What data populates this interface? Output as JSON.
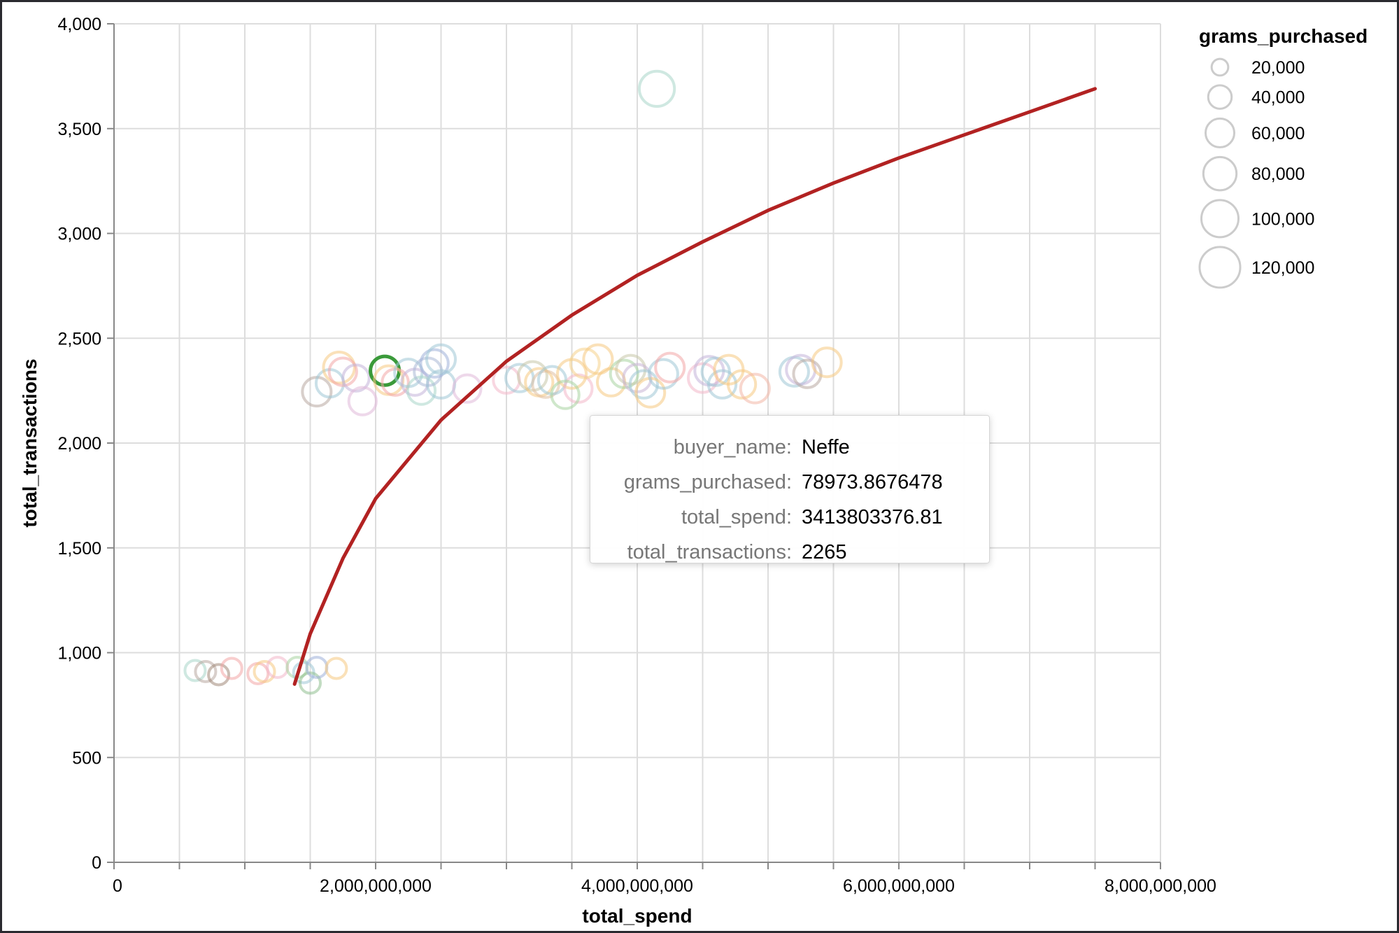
{
  "chart_data": {
    "type": "scatter",
    "xlabel": "total_spend",
    "ylabel": "total_transactions",
    "xlim": [
      0,
      8000000000
    ],
    "ylim": [
      0,
      4000
    ],
    "x_ticks": [
      "0",
      "2,000,000,000",
      "4,000,000,000",
      "6,000,000,000",
      "8,000,000,000"
    ],
    "y_ticks": [
      "0",
      "500",
      "1,000",
      "1,500",
      "2,000",
      "2,500",
      "3,000",
      "3,500",
      "4,000"
    ],
    "grid": true,
    "size_legend": {
      "title": "grams_purchased",
      "entries": [
        {
          "label": "20,000",
          "value": 20000
        },
        {
          "label": "40,000",
          "value": 40000
        },
        {
          "label": "60,000",
          "value": 60000
        },
        {
          "label": "80,000",
          "value": 80000
        },
        {
          "label": "100,000",
          "value": 100000
        },
        {
          "label": "120,000",
          "value": 120000
        }
      ],
      "placement": "right"
    },
    "trend_line": {
      "color": "#b22222",
      "x": [
        1380000000,
        1500000000,
        1750000000,
        2000000000,
        2500000000,
        3000000000,
        3500000000,
        4000000000,
        4500000000,
        5000000000,
        5500000000,
        6000000000,
        6500000000,
        7000000000,
        7500000000
      ],
      "y": [
        850,
        1090,
        1450,
        1735,
        2110,
        2390,
        2610,
        2800,
        2960,
        3110,
        3240,
        3360,
        3470,
        3580,
        3690
      ]
    },
    "points": [
      {
        "x": 4150000000,
        "y": 3690,
        "size": 90000,
        "color": "#a8d6c8"
      },
      {
        "x": 1550000000,
        "y": 2245,
        "size": 60000,
        "color": "#b8a8a0"
      },
      {
        "x": 1650000000,
        "y": 2285,
        "size": 55000,
        "color": "#9fc7d6"
      },
      {
        "x": 1720000000,
        "y": 2360,
        "size": 70000,
        "color": "#f6c97f"
      },
      {
        "x": 1750000000,
        "y": 2340,
        "size": 55000,
        "color": "#f2a6a6"
      },
      {
        "x": 1850000000,
        "y": 2310,
        "size": 50000,
        "color": "#c2b2d8"
      },
      {
        "x": 1900000000,
        "y": 2200,
        "size": 55000,
        "color": "#e0b8d8"
      },
      {
        "x": 2070000000,
        "y": 2345,
        "size": 60000,
        "color": "#3a9a3a",
        "highlight": true
      },
      {
        "x": 2100000000,
        "y": 2300,
        "size": 60000,
        "color": "#f6c97f"
      },
      {
        "x": 2150000000,
        "y": 2290,
        "size": 50000,
        "color": "#f2a6a6"
      },
      {
        "x": 2250000000,
        "y": 2335,
        "size": 55000,
        "color": "#9fc7d6"
      },
      {
        "x": 2300000000,
        "y": 2290,
        "size": 50000,
        "color": "#c2b2d8"
      },
      {
        "x": 2350000000,
        "y": 2250,
        "size": 55000,
        "color": "#a8d6c8"
      },
      {
        "x": 2400000000,
        "y": 2340,
        "size": 55000,
        "color": "#aab8d6"
      },
      {
        "x": 2450000000,
        "y": 2380,
        "size": 55000,
        "color": "#9fb0d8"
      },
      {
        "x": 2500000000,
        "y": 2400,
        "size": 60000,
        "color": "#9fc7d6"
      },
      {
        "x": 2500000000,
        "y": 2280,
        "size": 55000,
        "color": "#9fc7d6"
      },
      {
        "x": 2700000000,
        "y": 2260,
        "size": 55000,
        "color": "#e0b8d8"
      },
      {
        "x": 3000000000,
        "y": 2300,
        "size": 50000,
        "color": "#f2b6c8"
      },
      {
        "x": 3100000000,
        "y": 2310,
        "size": 55000,
        "color": "#9fc7d6"
      },
      {
        "x": 3200000000,
        "y": 2320,
        "size": 60000,
        "color": "#c6c6a8"
      },
      {
        "x": 3250000000,
        "y": 2290,
        "size": 55000,
        "color": "#f6c97f"
      },
      {
        "x": 3300000000,
        "y": 2280,
        "size": 50000,
        "color": "#e0c0a0"
      },
      {
        "x": 3350000000,
        "y": 2300,
        "size": 55000,
        "color": "#9fc7d6"
      },
      {
        "x": 3500000000,
        "y": 2330,
        "size": 60000,
        "color": "#f6c97f"
      },
      {
        "x": 3550000000,
        "y": 2260,
        "size": 55000,
        "color": "#f2b6c8"
      },
      {
        "x": 3450000000,
        "y": 2230,
        "size": 55000,
        "color": "#a8d4a0"
      },
      {
        "x": 3600000000,
        "y": 2380,
        "size": 60000,
        "color": "#f6d28a"
      },
      {
        "x": 3700000000,
        "y": 2400,
        "size": 60000,
        "color": "#f6c97f"
      },
      {
        "x": 3800000000,
        "y": 2290,
        "size": 55000,
        "color": "#f6c97f"
      },
      {
        "x": 3900000000,
        "y": 2330,
        "size": 55000,
        "color": "#a8d4a0"
      },
      {
        "x": 3950000000,
        "y": 2350,
        "size": 60000,
        "color": "#c6c6a8"
      },
      {
        "x": 4000000000,
        "y": 2310,
        "size": 55000,
        "color": "#c8b4d6"
      },
      {
        "x": 4050000000,
        "y": 2280,
        "size": 55000,
        "color": "#9fc7d6"
      },
      {
        "x": 4100000000,
        "y": 2240,
        "size": 60000,
        "color": "#f6c97f"
      },
      {
        "x": 4200000000,
        "y": 2330,
        "size": 60000,
        "color": "#9fc7d6"
      },
      {
        "x": 4250000000,
        "y": 2360,
        "size": 60000,
        "color": "#f2a6a6"
      },
      {
        "x": 4500000000,
        "y": 2310,
        "size": 60000,
        "color": "#f2b6c8"
      },
      {
        "x": 4550000000,
        "y": 2345,
        "size": 60000,
        "color": "#c2b2d8"
      },
      {
        "x": 4600000000,
        "y": 2340,
        "size": 55000,
        "color": "#9fc7d6"
      },
      {
        "x": 4650000000,
        "y": 2280,
        "size": 55000,
        "color": "#9fc7d6"
      },
      {
        "x": 4700000000,
        "y": 2350,
        "size": 60000,
        "color": "#f6c97f"
      },
      {
        "x": 4800000000,
        "y": 2280,
        "size": 55000,
        "color": "#f6c97f"
      },
      {
        "x": 4900000000,
        "y": 2260,
        "size": 60000,
        "color": "#f2b6a6"
      },
      {
        "x": 5200000000,
        "y": 2340,
        "size": 60000,
        "color": "#9fc7d6"
      },
      {
        "x": 5250000000,
        "y": 2350,
        "size": 60000,
        "color": "#c2b2d8"
      },
      {
        "x": 5300000000,
        "y": 2330,
        "size": 55000,
        "color": "#b8a8a0"
      },
      {
        "x": 5450000000,
        "y": 2385,
        "size": 60000,
        "color": "#f6c97f"
      },
      {
        "x": 620000000,
        "y": 915,
        "size": 30000,
        "color": "#a8d6c8"
      },
      {
        "x": 700000000,
        "y": 910,
        "size": 30000,
        "color": "#b8a8a0"
      },
      {
        "x": 800000000,
        "y": 895,
        "size": 30000,
        "color": "#a08878"
      },
      {
        "x": 900000000,
        "y": 925,
        "size": 30000,
        "color": "#f2a6a6"
      },
      {
        "x": 1100000000,
        "y": 900,
        "size": 30000,
        "color": "#f2a6a6"
      },
      {
        "x": 1150000000,
        "y": 910,
        "size": 30000,
        "color": "#f6c97f"
      },
      {
        "x": 1250000000,
        "y": 930,
        "size": 30000,
        "color": "#f2b6c8"
      },
      {
        "x": 1400000000,
        "y": 930,
        "size": 30000,
        "color": "#a8d4a0"
      },
      {
        "x": 1450000000,
        "y": 905,
        "size": 30000,
        "color": "#9fc7d6"
      },
      {
        "x": 1500000000,
        "y": 855,
        "size": 30000,
        "color": "#8fbf8f"
      },
      {
        "x": 1550000000,
        "y": 930,
        "size": 30000,
        "color": "#9fb0d8"
      },
      {
        "x": 1700000000,
        "y": 925,
        "size": 30000,
        "color": "#f6c97f"
      }
    ]
  },
  "tooltip": {
    "rows": [
      {
        "key": "buyer_name:",
        "value": "Neffe"
      },
      {
        "key": "grams_purchased:",
        "value": "78973.8676478"
      },
      {
        "key": "total_spend:",
        "value": "3413803376.81"
      },
      {
        "key": "total_transactions:",
        "value": "2265"
      }
    ]
  }
}
